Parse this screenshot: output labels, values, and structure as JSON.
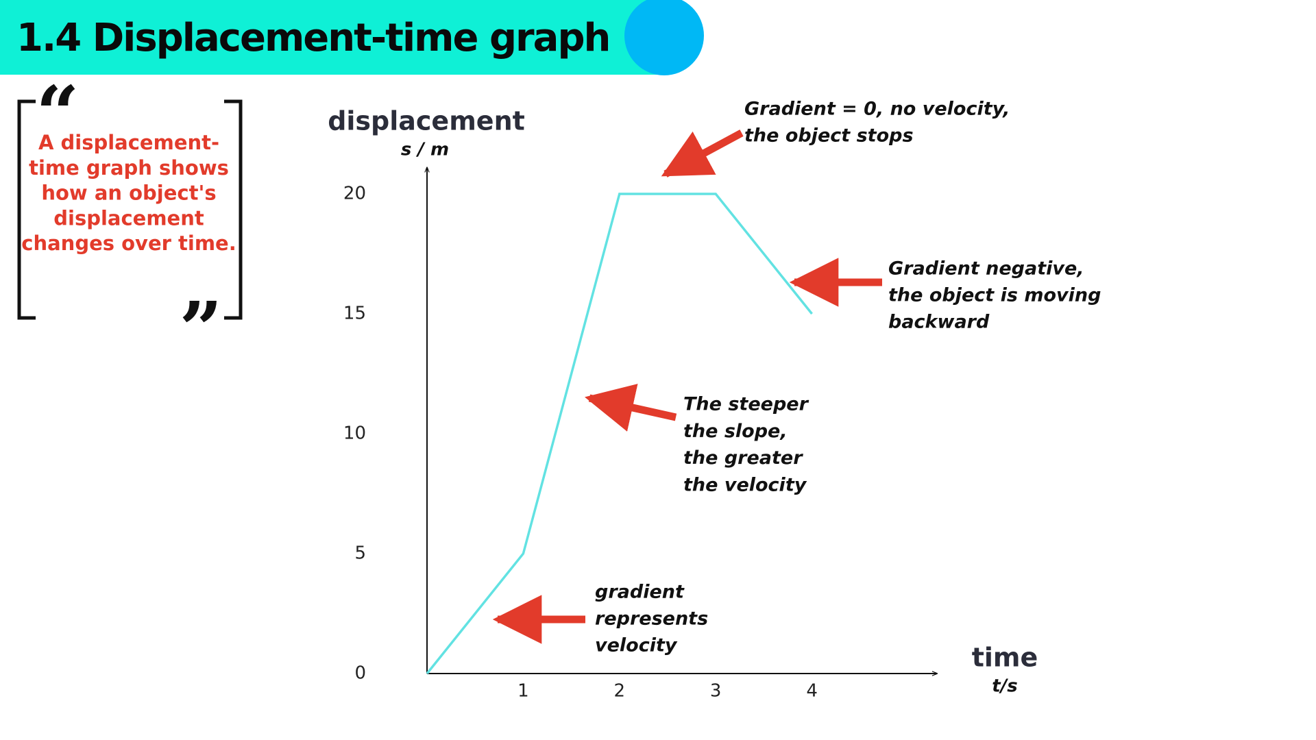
{
  "header": {
    "title": "1.4 Displacement-time graph"
  },
  "quote": {
    "open_mark": "“",
    "close_mark": "”",
    "lines": [
      "A displacement-",
      "time graph shows",
      "how an object's",
      "displacement",
      "changes over time."
    ]
  },
  "chart_data": {
    "type": "line",
    "y_label": "displacement",
    "y_unit": "s / m",
    "x_label": "time",
    "x_unit": "t/s",
    "x": [
      0,
      1,
      2,
      3,
      4
    ],
    "values": [
      0,
      5,
      20,
      20,
      15
    ],
    "color": "#62e2e2",
    "xlim": [
      0,
      5.3
    ],
    "ylim": [
      0,
      21.1
    ],
    "xticks": [
      1,
      2,
      3,
      4
    ],
    "yticks": [
      0,
      5,
      10,
      15,
      20
    ],
    "grid": false,
    "annotations": [
      {
        "lines": [
          "Gradient = 0, no velocity,",
          "the object stops"
        ]
      },
      {
        "lines": [
          "Gradient negative,",
          "the object is moving",
          "backward"
        ]
      },
      {
        "lines": [
          "The steeper",
          "the slope,",
          "the greater",
          "the velocity"
        ]
      },
      {
        "lines": [
          "gradient",
          "represents",
          "velocity"
        ]
      }
    ]
  }
}
